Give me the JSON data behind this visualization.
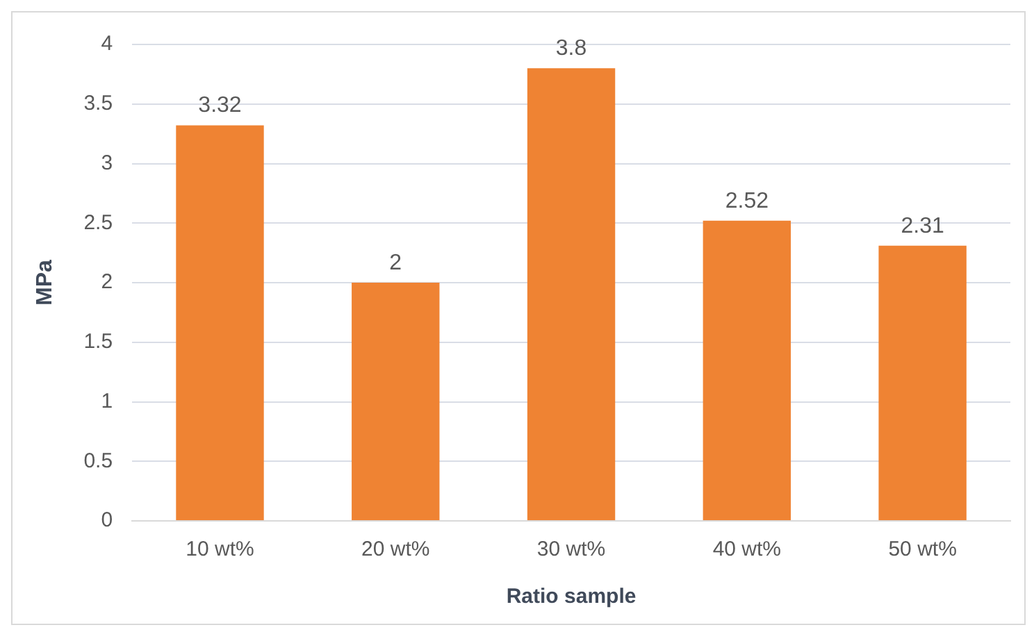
{
  "chart_data": {
    "type": "bar",
    "xlabel": "Ratio sample",
    "ylabel": "MPa",
    "categories": [
      "10 wt%",
      "20 wt%",
      "30 wt%",
      "40 wt%",
      "50 wt%"
    ],
    "values": [
      3.32,
      2,
      3.8,
      2.52,
      2.31
    ],
    "color": "#ef8333",
    "ylim": [
      0,
      4
    ],
    "yticks": [
      0,
      0.5,
      1,
      1.5,
      2,
      2.5,
      3,
      3.5,
      4
    ],
    "grid": "y",
    "data_labels": true
  }
}
